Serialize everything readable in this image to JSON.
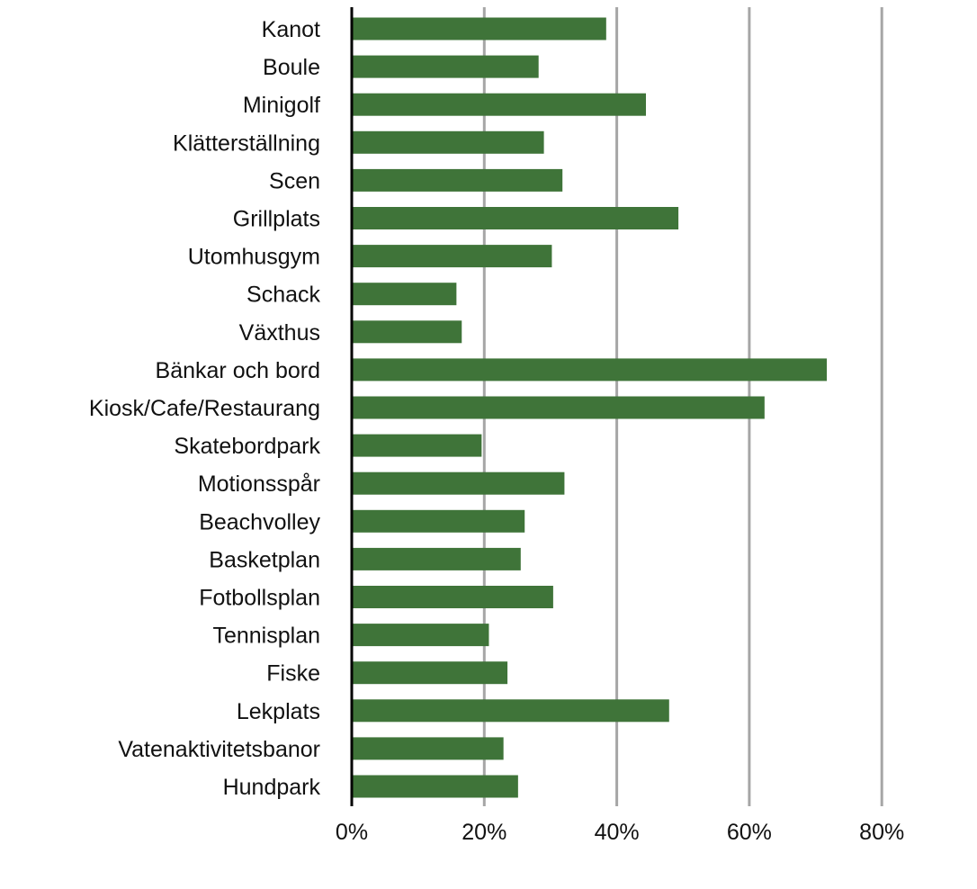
{
  "chart_data": {
    "type": "bar",
    "orientation": "horizontal",
    "categories": [
      "Kanot",
      "Boule",
      "Minigolf",
      "Klätterställning",
      "Scen",
      "Grillplats",
      "Utomhusgym",
      "Schack",
      "Växthus",
      "Bänkar och bord",
      "Kiosk/Cafe/Restaurang",
      "Skatebordpark",
      "Motionsspår",
      "Beachvolley",
      "Basketplan",
      "Fotbollsplan",
      "Tennisplan",
      "Fiske",
      "Lekplats",
      "Vatenaktivitetsbanor",
      "Hundpark"
    ],
    "values": [
      38.4,
      28.2,
      44.4,
      29.0,
      31.8,
      49.3,
      30.2,
      15.8,
      16.6,
      71.7,
      62.3,
      19.6,
      32.1,
      26.1,
      25.5,
      30.4,
      20.7,
      23.5,
      47.9,
      22.9,
      25.1
    ],
    "unit": "%",
    "xlim": [
      0,
      80
    ],
    "xticks": [
      0,
      20,
      40,
      60,
      80
    ],
    "xtick_labels": [
      "0%",
      "20%",
      "40%",
      "60%",
      "80%"
    ],
    "title": "",
    "xlabel": "",
    "ylabel": "",
    "grid": "vertical",
    "legend": "none",
    "bar_color": "#3f7439",
    "grid_color": "#a6a6a6",
    "axis_color": "#000000"
  }
}
